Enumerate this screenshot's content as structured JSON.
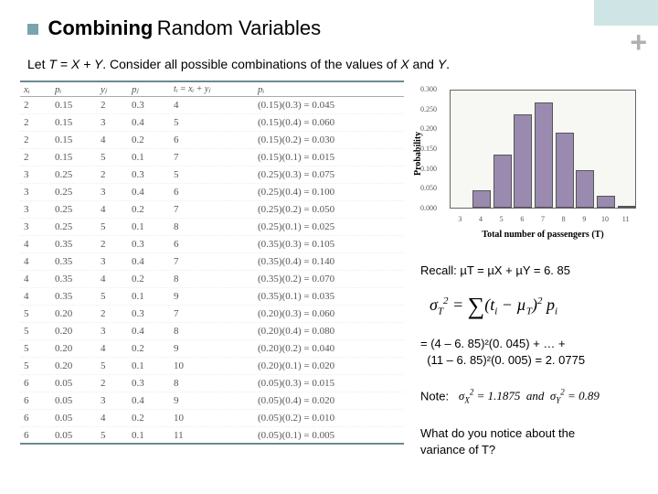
{
  "header": {
    "square_color": "#7aa4ac",
    "t1": "Combining",
    "t2": "Random Variables",
    "plus": "+",
    "corner_color": "#cfe4e5"
  },
  "subtitle_parts": {
    "a": "Let ",
    "b": "T = X + Y",
    "c": ". Consider all possible combinations of the values of ",
    "d": "X",
    "e": " and ",
    "f": "Y",
    "g": "."
  },
  "table": {
    "headers": {
      "xi": "xᵢ",
      "pxi": "pᵢ",
      "yi": "yⱼ",
      "pyi": "pⱼ",
      "ti": "tᵢ = xᵢ + yⱼ",
      "pi": "pᵢ"
    },
    "rows": [
      {
        "xi": "2",
        "pxi": "0.15",
        "yi": "2",
        "pyi": "0.3",
        "ti": "4",
        "pi": "(0.15)(0.3) = 0.045"
      },
      {
        "xi": "2",
        "pxi": "0.15",
        "yi": "3",
        "pyi": "0.4",
        "ti": "5",
        "pi": "(0.15)(0.4) = 0.060"
      },
      {
        "xi": "2",
        "pxi": "0.15",
        "yi": "4",
        "pyi": "0.2",
        "ti": "6",
        "pi": "(0.15)(0.2) = 0.030"
      },
      {
        "xi": "2",
        "pxi": "0.15",
        "yi": "5",
        "pyi": "0.1",
        "ti": "7",
        "pi": "(0.15)(0.1) = 0.015"
      },
      {
        "xi": "3",
        "pxi": "0.25",
        "yi": "2",
        "pyi": "0.3",
        "ti": "5",
        "pi": "(0.25)(0.3) = 0.075"
      },
      {
        "xi": "3",
        "pxi": "0.25",
        "yi": "3",
        "pyi": "0.4",
        "ti": "6",
        "pi": "(0.25)(0.4) = 0.100"
      },
      {
        "xi": "3",
        "pxi": "0.25",
        "yi": "4",
        "pyi": "0.2",
        "ti": "7",
        "pi": "(0.25)(0.2) = 0.050"
      },
      {
        "xi": "3",
        "pxi": "0.25",
        "yi": "5",
        "pyi": "0.1",
        "ti": "8",
        "pi": "(0.25)(0.1) = 0.025"
      },
      {
        "xi": "4",
        "pxi": "0.35",
        "yi": "2",
        "pyi": "0.3",
        "ti": "6",
        "pi": "(0.35)(0.3) = 0.105"
      },
      {
        "xi": "4",
        "pxi": "0.35",
        "yi": "3",
        "pyi": "0.4",
        "ti": "7",
        "pi": "(0.35)(0.4) = 0.140"
      },
      {
        "xi": "4",
        "pxi": "0.35",
        "yi": "4",
        "pyi": "0.2",
        "ti": "8",
        "pi": "(0.35)(0.2) = 0.070"
      },
      {
        "xi": "4",
        "pxi": "0.35",
        "yi": "5",
        "pyi": "0.1",
        "ti": "9",
        "pi": "(0.35)(0.1) = 0.035"
      },
      {
        "xi": "5",
        "pxi": "0.20",
        "yi": "2",
        "pyi": "0.3",
        "ti": "7",
        "pi": "(0.20)(0.3) = 0.060"
      },
      {
        "xi": "5",
        "pxi": "0.20",
        "yi": "3",
        "pyi": "0.4",
        "ti": "8",
        "pi": "(0.20)(0.4) = 0.080"
      },
      {
        "xi": "5",
        "pxi": "0.20",
        "yi": "4",
        "pyi": "0.2",
        "ti": "9",
        "pi": "(0.20)(0.2) = 0.040"
      },
      {
        "xi": "5",
        "pxi": "0.20",
        "yi": "5",
        "pyi": "0.1",
        "ti": "10",
        "pi": "(0.20)(0.1) = 0.020"
      },
      {
        "xi": "6",
        "pxi": "0.05",
        "yi": "2",
        "pyi": "0.3",
        "ti": "8",
        "pi": "(0.05)(0.3) = 0.015"
      },
      {
        "xi": "6",
        "pxi": "0.05",
        "yi": "3",
        "pyi": "0.4",
        "ti": "9",
        "pi": "(0.05)(0.4) = 0.020"
      },
      {
        "xi": "6",
        "pxi": "0.05",
        "yi": "4",
        "pyi": "0.2",
        "ti": "10",
        "pi": "(0.05)(0.2) = 0.010"
      },
      {
        "xi": "6",
        "pxi": "0.05",
        "yi": "5",
        "pyi": "0.1",
        "ti": "11",
        "pi": "(0.05)(0.1) = 0.005"
      }
    ]
  },
  "chart": {
    "type": "bar",
    "ylabel": "Probability",
    "xlabel": "Total number of passengers (T)",
    "bar_color": "#9a8ab0",
    "bg_color": "#f7f7f3",
    "categories": [
      4,
      5,
      6,
      7,
      8,
      9,
      10,
      11
    ],
    "values": [
      0.045,
      0.135,
      0.235,
      0.265,
      0.19,
      0.095,
      0.03,
      0.005
    ],
    "ylim": [
      0.0,
      0.3
    ],
    "yticks": [
      "0.300",
      "0.250",
      "0.200",
      "0.150",
      "0.100",
      "0.050",
      "0.000"
    ],
    "xticks_all": [
      3,
      4,
      5,
      6,
      7,
      8,
      9,
      10,
      11
    ]
  },
  "right": {
    "recall": "Recall: µT = µX + µY = 6. 85",
    "formula": "σ²T = Σ (tᵢ − µT)² pᵢ",
    "calc1": "= (4 – 6. 85)²(0. 045) + … +",
    "calc2": "  (11 – 6. 85)²(0. 005) = 2. 0775",
    "note_label": "Note:",
    "note_formula": "σ²X = 1.1875  and  σ²Y = 0.89",
    "q1": "What do you notice about the",
    "q2": "variance of T?"
  }
}
